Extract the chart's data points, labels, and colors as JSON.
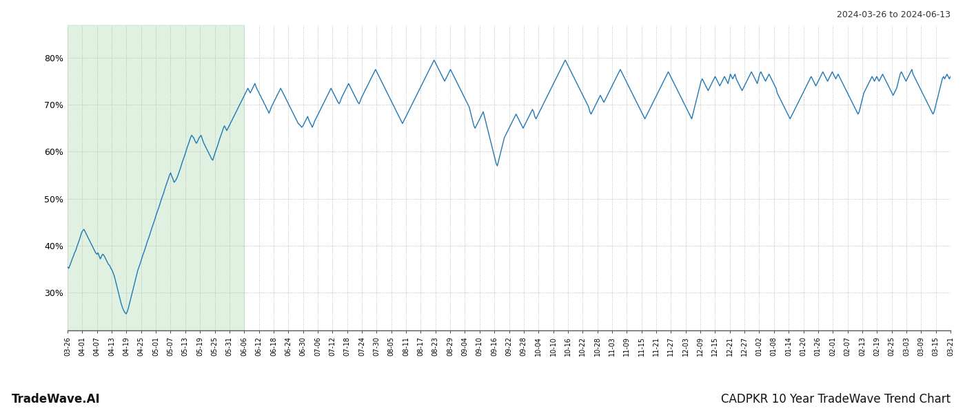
{
  "title_top_right": "2024-03-26 to 2024-06-13",
  "title_bottom_left": "TradeWave.AI",
  "title_bottom_right": "CADPKR 10 Year TradeWave Trend Chart",
  "line_color": "#1f77b4",
  "line_width": 1.0,
  "background_color": "#ffffff",
  "grid_color": "#b0b0b0",
  "highlight_color": "#c8e6c9",
  "highlight_alpha": 0.55,
  "y_ticks": [
    30,
    40,
    50,
    60,
    70,
    80
  ],
  "ylim": [
    22,
    87
  ],
  "x_tick_labels": [
    "03-26",
    "04-01",
    "04-07",
    "04-13",
    "04-19",
    "04-25",
    "05-01",
    "05-07",
    "05-13",
    "05-19",
    "05-25",
    "05-31",
    "06-06",
    "06-12",
    "06-18",
    "06-24",
    "06-30",
    "07-06",
    "07-12",
    "07-18",
    "07-24",
    "07-30",
    "08-05",
    "08-11",
    "08-17",
    "08-23",
    "08-29",
    "09-04",
    "09-10",
    "09-16",
    "09-22",
    "09-28",
    "10-04",
    "10-10",
    "10-16",
    "10-22",
    "10-28",
    "11-03",
    "11-09",
    "11-15",
    "11-21",
    "11-27",
    "12-03",
    "12-09",
    "12-15",
    "12-21",
    "12-27",
    "01-02",
    "01-08",
    "01-14",
    "01-20",
    "01-26",
    "02-01",
    "02-07",
    "02-13",
    "02-19",
    "02-25",
    "03-03",
    "03-09",
    "03-15",
    "03-21"
  ],
  "shade_x_start_label": "03-26",
  "shade_x_end_label": "06-06",
  "y_values": [
    35.5,
    35.2,
    35.8,
    36.5,
    37.2,
    37.8,
    38.5,
    39.0,
    39.8,
    40.5,
    41.2,
    42.0,
    42.8,
    43.2,
    43.5,
    43.0,
    42.5,
    42.0,
    41.5,
    41.0,
    40.5,
    40.0,
    39.5,
    39.0,
    38.5,
    38.2,
    38.5,
    37.8,
    37.2,
    37.8,
    38.2,
    38.0,
    37.5,
    37.0,
    36.5,
    36.0,
    35.8,
    35.2,
    34.8,
    34.2,
    33.5,
    32.5,
    31.5,
    30.5,
    29.5,
    28.5,
    27.5,
    26.8,
    26.2,
    25.8,
    25.5,
    26.0,
    26.8,
    27.8,
    28.8,
    29.8,
    30.8,
    31.8,
    32.8,
    33.8,
    34.8,
    35.5,
    36.2,
    37.0,
    37.8,
    38.5,
    39.2,
    40.0,
    40.8,
    41.5,
    42.2,
    43.0,
    43.8,
    44.5,
    45.2,
    46.0,
    46.8,
    47.5,
    48.2,
    49.0,
    49.8,
    50.5,
    51.2,
    52.0,
    52.8,
    53.5,
    54.2,
    55.0,
    55.5,
    54.8,
    54.2,
    53.5,
    53.8,
    54.2,
    54.8,
    55.5,
    56.2,
    57.0,
    57.8,
    58.5,
    59.2,
    60.0,
    60.8,
    61.5,
    62.2,
    63.0,
    63.5,
    63.2,
    62.8,
    62.2,
    61.8,
    62.2,
    62.8,
    63.2,
    63.5,
    62.8,
    62.0,
    61.5,
    61.0,
    60.5,
    60.0,
    59.5,
    59.0,
    58.5,
    58.2,
    59.0,
    59.8,
    60.5,
    61.2,
    62.0,
    62.8,
    63.5,
    64.2,
    65.0,
    65.5,
    65.0,
    64.5,
    65.0,
    65.5,
    66.0,
    66.5,
    67.0,
    67.5,
    68.0,
    68.5,
    69.0,
    69.5,
    70.0,
    70.5,
    71.0,
    71.5,
    72.0,
    72.5,
    73.0,
    73.5,
    73.0,
    72.5,
    73.0,
    73.5,
    74.0,
    74.5,
    73.8,
    73.2,
    72.8,
    72.2,
    71.8,
    71.2,
    70.8,
    70.2,
    69.8,
    69.2,
    68.8,
    68.2,
    68.8,
    69.5,
    70.0,
    70.5,
    71.0,
    71.5,
    72.0,
    72.5,
    73.0,
    73.5,
    73.0,
    72.5,
    72.0,
    71.5,
    71.0,
    70.5,
    70.0,
    69.5,
    69.0,
    68.5,
    68.0,
    67.5,
    67.0,
    66.5,
    66.0,
    65.8,
    65.5,
    65.2,
    65.5,
    66.0,
    66.5,
    67.0,
    67.5,
    66.8,
    66.2,
    65.8,
    65.2,
    65.8,
    66.5,
    67.0,
    67.5,
    68.0,
    68.5,
    69.0,
    69.5,
    70.0,
    70.5,
    71.0,
    71.5,
    72.0,
    72.5,
    73.0,
    73.5,
    73.0,
    72.5,
    72.0,
    71.5,
    71.0,
    70.5,
    70.2,
    70.8,
    71.5,
    72.0,
    72.5,
    73.0,
    73.5,
    74.0,
    74.5,
    74.0,
    73.5,
    73.0,
    72.5,
    72.0,
    71.5,
    71.0,
    70.5,
    70.2,
    70.8,
    71.5,
    72.0,
    72.5,
    73.0,
    73.5,
    74.0,
    74.5,
    75.0,
    75.5,
    76.0,
    76.5,
    77.0,
    77.5,
    77.0,
    76.5,
    76.0,
    75.5,
    75.0,
    74.5,
    74.0,
    73.5,
    73.0,
    72.5,
    72.0,
    71.5,
    71.0,
    70.5,
    70.0,
    69.5,
    69.0,
    68.5,
    68.0,
    67.5,
    67.0,
    66.5,
    66.0,
    66.5,
    67.0,
    67.5,
    68.0,
    68.5,
    69.0,
    69.5,
    70.0,
    70.5,
    71.0,
    71.5,
    72.0,
    72.5,
    73.0,
    73.5,
    74.0,
    74.5,
    75.0,
    75.5,
    76.0,
    76.5,
    77.0,
    77.5,
    78.0,
    78.5,
    79.0,
    79.5,
    79.0,
    78.5,
    78.0,
    77.5,
    77.0,
    76.5,
    76.0,
    75.5,
    75.0,
    75.5,
    76.0,
    76.5,
    77.0,
    77.5,
    77.0,
    76.5,
    76.0,
    75.5,
    75.0,
    74.5,
    74.0,
    73.5,
    73.0,
    72.5,
    72.0,
    71.5,
    71.0,
    70.5,
    70.0,
    69.5,
    68.5,
    67.5,
    66.5,
    65.5,
    65.0,
    65.5,
    66.0,
    66.5,
    67.0,
    67.5,
    68.0,
    68.5,
    67.5,
    66.5,
    65.5,
    64.5,
    63.5,
    62.5,
    61.5,
    60.5,
    59.5,
    58.5,
    57.5,
    57.0,
    58.0,
    59.0,
    60.0,
    61.0,
    62.0,
    63.0,
    63.5,
    64.0,
    64.5,
    65.0,
    65.5,
    66.0,
    66.5,
    67.0,
    67.5,
    68.0,
    67.5,
    67.0,
    66.5,
    66.0,
    65.5,
    65.0,
    65.5,
    66.0,
    66.5,
    67.0,
    67.5,
    68.0,
    68.5,
    69.0,
    68.5,
    67.5,
    67.0,
    67.5,
    68.0,
    68.5,
    69.0,
    69.5,
    70.0,
    70.5,
    71.0,
    71.5,
    72.0,
    72.5,
    73.0,
    73.5,
    74.0,
    74.5,
    75.0,
    75.5,
    76.0,
    76.5,
    77.0,
    77.5,
    78.0,
    78.5,
    79.0,
    79.5,
    79.0,
    78.5,
    78.0,
    77.5,
    77.0,
    76.5,
    76.0,
    75.5,
    75.0,
    74.5,
    74.0,
    73.5,
    73.0,
    72.5,
    72.0,
    71.5,
    71.0,
    70.5,
    70.0,
    69.5,
    68.5,
    68.0,
    68.5,
    69.0,
    69.5,
    70.0,
    70.5,
    71.0,
    71.5,
    72.0,
    71.5,
    71.0,
    70.5,
    71.0,
    71.5,
    72.0,
    72.5,
    73.0,
    73.5,
    74.0,
    74.5,
    75.0,
    75.5,
    76.0,
    76.5,
    77.0,
    77.5,
    77.0,
    76.5,
    76.0,
    75.5,
    75.0,
    74.5,
    74.0,
    73.5,
    73.0,
    72.5,
    72.0,
    71.5,
    71.0,
    70.5,
    70.0,
    69.5,
    69.0,
    68.5,
    68.0,
    67.5,
    67.0,
    67.5,
    68.0,
    68.5,
    69.0,
    69.5,
    70.0,
    70.5,
    71.0,
    71.5,
    72.0,
    72.5,
    73.0,
    73.5,
    74.0,
    74.5,
    75.0,
    75.5,
    76.0,
    76.5,
    77.0,
    76.5,
    76.0,
    75.5,
    75.0,
    74.5,
    74.0,
    73.5,
    73.0,
    72.5,
    72.0,
    71.5,
    71.0,
    70.5,
    70.0,
    69.5,
    69.0,
    68.5,
    68.0,
    67.5,
    67.0,
    68.0,
    69.0,
    70.0,
    71.0,
    72.0,
    73.0,
    74.0,
    75.0,
    75.5,
    75.0,
    74.5,
    74.0,
    73.5,
    73.0,
    73.5,
    74.0,
    74.5,
    75.0,
    75.5,
    76.0,
    75.5,
    75.0,
    74.5,
    74.0,
    74.5,
    75.0,
    75.5,
    76.0,
    75.5,
    75.0,
    74.5,
    75.5,
    76.5,
    76.0,
    75.5,
    76.0,
    76.5,
    75.5,
    75.0,
    74.5,
    74.0,
    73.5,
    73.0,
    73.5,
    74.0,
    74.5,
    75.0,
    75.5,
    76.0,
    76.5,
    77.0,
    76.5,
    76.0,
    75.5,
    75.0,
    74.5,
    75.5,
    76.5,
    77.0,
    76.5,
    76.0,
    75.5,
    75.0,
    75.5,
    76.0,
    76.5,
    76.0,
    75.5,
    75.0,
    74.5,
    74.0,
    73.5,
    72.5,
    72.0,
    71.5,
    71.0,
    70.5,
    70.0,
    69.5,
    69.0,
    68.5,
    68.0,
    67.5,
    67.0,
    67.5,
    68.0,
    68.5,
    69.0,
    69.5,
    70.0,
    70.5,
    71.0,
    71.5,
    72.0,
    72.5,
    73.0,
    73.5,
    74.0,
    74.5,
    75.0,
    75.5,
    76.0,
    75.5,
    75.0,
    74.5,
    74.0,
    74.5,
    75.0,
    75.5,
    76.0,
    76.5,
    77.0,
    76.5,
    76.0,
    75.5,
    75.0,
    75.5,
    76.0,
    76.5,
    77.0,
    76.5,
    76.0,
    75.5,
    76.0,
    76.5,
    76.0,
    75.5,
    75.0,
    74.5,
    74.0,
    73.5,
    73.0,
    72.5,
    72.0,
    71.5,
    71.0,
    70.5,
    70.0,
    69.5,
    69.0,
    68.5,
    68.0,
    68.5,
    69.5,
    70.5,
    71.5,
    72.5,
    73.0,
    73.5,
    74.0,
    74.5,
    75.0,
    75.5,
    76.0,
    75.5,
    75.0,
    75.5,
    76.0,
    75.5,
    75.0,
    75.5,
    76.0,
    76.5,
    76.0,
    75.5,
    75.0,
    74.5,
    74.0,
    73.5,
    73.0,
    72.5,
    72.0,
    72.5,
    73.0,
    73.5,
    74.5,
    75.5,
    76.5,
    77.0,
    76.5,
    76.0,
    75.5,
    75.0,
    75.5,
    76.0,
    76.5,
    77.0,
    77.5,
    76.5,
    76.0,
    75.5,
    75.0,
    74.5,
    74.0,
    73.5,
    73.0,
    72.5,
    72.0,
    71.5,
    71.0,
    70.5,
    70.0,
    69.5,
    69.0,
    68.5,
    68.0,
    68.5,
    69.5,
    70.5,
    71.5,
    72.5,
    73.5,
    74.5,
    75.5,
    76.0,
    75.5,
    76.0,
    76.5,
    76.0,
    75.5,
    76.0
  ]
}
